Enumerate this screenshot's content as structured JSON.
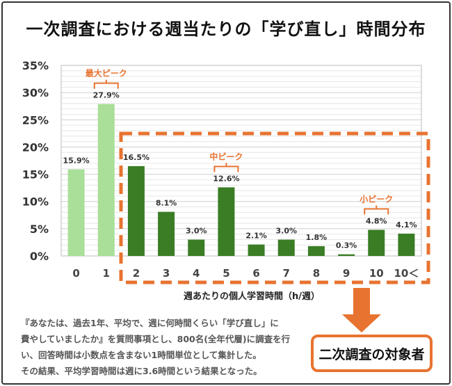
{
  "title": "一次調査における週当たりの「学び直し」時間分布",
  "chart_data": {
    "type": "bar",
    "categories": [
      "0",
      "1",
      "2",
      "3",
      "4",
      "5",
      "6",
      "7",
      "8",
      "9",
      "10",
      "10＜"
    ],
    "values": [
      15.9,
      27.9,
      16.5,
      8.1,
      3.0,
      12.6,
      2.1,
      3.0,
      1.8,
      0.3,
      4.8,
      4.1
    ],
    "data_labels": [
      "15.9%",
      "27.9%",
      "16.5%",
      "8.1%",
      "3.0%",
      "12.6%",
      "2.1%",
      "3.0%",
      "1.8%",
      "0.3%",
      "4.8%",
      "4.1%"
    ],
    "xlabel": "週あたりの個人学習時間（h/週）",
    "ylabel": "",
    "ylim": [
      0,
      35
    ],
    "yticks": [
      "0%",
      "5%",
      "10%",
      "15%",
      "20%",
      "25%",
      "30%",
      "35%"
    ],
    "grid": true,
    "colors": {
      "light": "#a9df98",
      "dark": "#3a7d25",
      "accent": "#e87330"
    },
    "highlight_range": [
      "2",
      "10＜"
    ],
    "annotations": [
      {
        "text": "最大ピーク",
        "category": "1"
      },
      {
        "text": "中ピーク",
        "category": "5"
      },
      {
        "text": "小ピーク",
        "category": "10"
      }
    ]
  },
  "note": {
    "lines": [
      "『あなたは、過去1年、平均で、週に何時間くらい「学び直し」に",
      "費やしていましたか』を質問事項とし、800名(全年代層)に調査を行",
      "い、回答時間は小数点を含まない1時間単位として集計した。",
      "その結果、平均学習時間は週に3.6時間という結果となった。"
    ]
  },
  "target_label": "二次調査の対象者"
}
